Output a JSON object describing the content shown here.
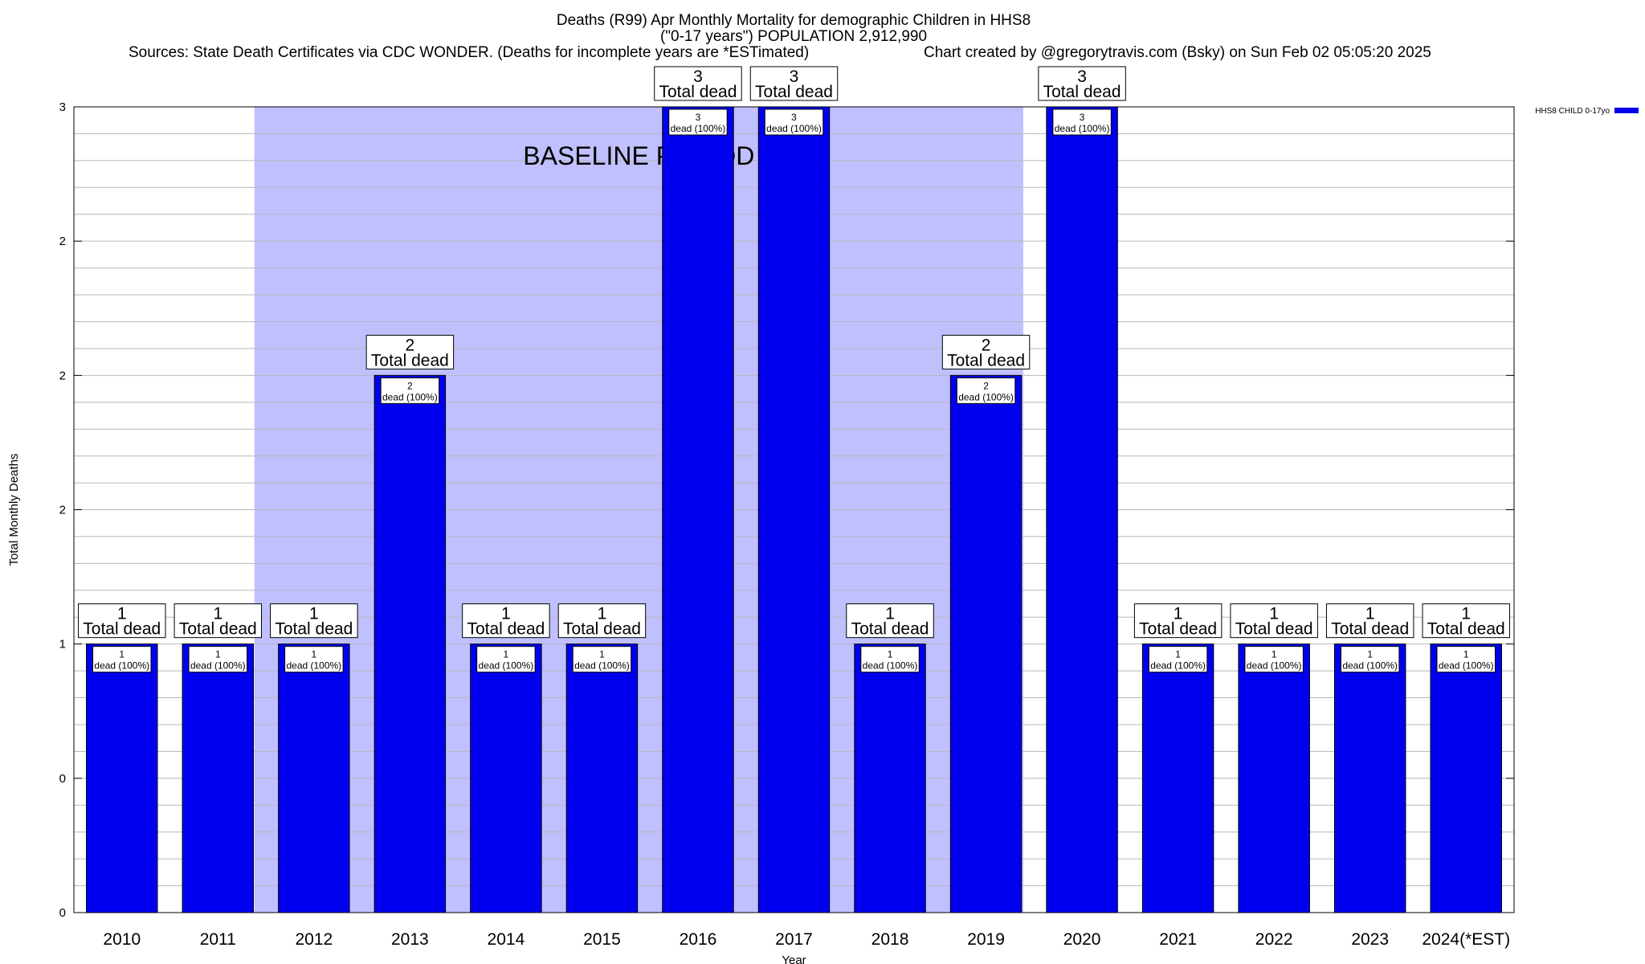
{
  "chart_data": {
    "type": "bar",
    "title_lines": [
      "Deaths (R99) Apr Monthly Mortality for demographic Children in HHS8",
      "(\"0-17 years\") POPULATION 2,912,990"
    ],
    "sources_text": "Sources: State Death Certificates via CDC WONDER. (Deaths for incomplete years are *ESTimated)",
    "credit_text": "Chart created by @gregorytravis.com (Bsky) on Sun Feb 02 05:05:20 2025",
    "xlabel": "Year",
    "ylabel": "Total Monthly Deaths",
    "categories": [
      "2010",
      "2011",
      "2012",
      "2013",
      "2014",
      "2015",
      "2016",
      "2017",
      "2018",
      "2019",
      "2020",
      "2021",
      "2022",
      "2023",
      "2024(*EST)"
    ],
    "series": [
      {
        "name": "HHS8 CHILD 0-17yo",
        "color": "#0000ee",
        "values": [
          1,
          1,
          1,
          2,
          1,
          1,
          3,
          3,
          1,
          2,
          3,
          1,
          1,
          1,
          1
        ]
      }
    ],
    "total_labels": {
      "values": [
        "1",
        "1",
        "1",
        "2",
        "1",
        "1",
        "3",
        "3",
        "1",
        "2",
        "3",
        "1",
        "1",
        "1",
        "1"
      ],
      "caption": "Total dead"
    },
    "bar_labels": {
      "values": [
        "1",
        "1",
        "1",
        "2",
        "1",
        "1",
        "3",
        "3",
        "1",
        "2",
        "3",
        "1",
        "1",
        "1",
        "1"
      ],
      "caption": "dead (100%)"
    },
    "ylim": [
      0,
      3
    ],
    "y_tick_values": [
      0,
      0.5,
      1,
      1.5,
      2,
      2.5,
      3
    ],
    "y_tick_labels": [
      "0",
      "0",
      "1",
      "2",
      "2",
      "2",
      "3"
    ],
    "baseline_period": {
      "label": "BASELINE PERIOD",
      "start_category": "2012",
      "end_category": "2019",
      "color": "#c0c0ff"
    },
    "grid": true,
    "legend_position": "top-right"
  }
}
